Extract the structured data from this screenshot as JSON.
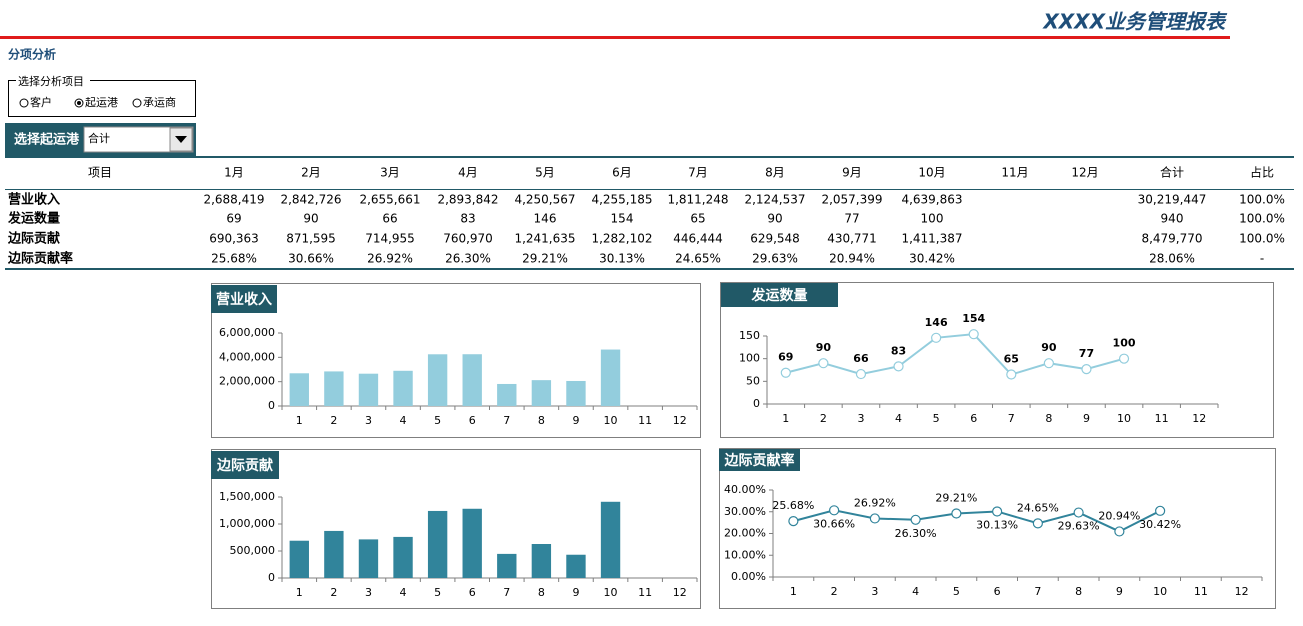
{
  "header": {
    "title": "XXXX业务管理报表",
    "section": "分项分析"
  },
  "selector": {
    "legend": "选择分析项目",
    "options": [
      "客户",
      "起运港",
      "承运商"
    ],
    "selected": 1
  },
  "filter": {
    "label": "选择起运港",
    "value": "合计"
  },
  "table": {
    "columns": [
      "项目",
      "1月",
      "2月",
      "3月",
      "4月",
      "5月",
      "6月",
      "7月",
      "8月",
      "9月",
      "10月",
      "11月",
      "12月",
      "合计",
      "占比"
    ],
    "rows": [
      [
        "营业收入",
        "2,688,419",
        "2,842,726",
        "2,655,661",
        "2,893,842",
        "4,250,567",
        "4,255,185",
        "1,811,248",
        "2,124,537",
        "2,057,399",
        "4,639,863",
        null,
        null,
        "30,219,447",
        "100.0%"
      ],
      [
        "发运数量",
        "69",
        "90",
        "66",
        "83",
        "146",
        "154",
        "65",
        "90",
        "77",
        "100",
        null,
        null,
        "940",
        "100.0%"
      ],
      [
        "边际贡献",
        "690,363",
        "871,595",
        "714,955",
        "760,970",
        "1,241,635",
        "1,282,102",
        "446,444",
        "629,548",
        "430,771",
        "1,411,387",
        null,
        null,
        "8,479,770",
        "100.0%"
      ],
      [
        "边际贡献率",
        "25.68%",
        "30.66%",
        "26.92%",
        "26.30%",
        "29.21%",
        "30.13%",
        "24.65%",
        "29.63%",
        "20.94%",
        "30.42%",
        null,
        null,
        "28.06%",
        "-"
      ]
    ]
  },
  "chart_data": [
    {
      "type": "bar",
      "title": "营业收入",
      "categories": [
        "1",
        "2",
        "3",
        "4",
        "5",
        "6",
        "7",
        "8",
        "9",
        "10",
        "11",
        "12"
      ],
      "values": [
        2688419,
        2842726,
        2655661,
        2893842,
        4250567,
        4255185,
        1811248,
        2124537,
        2057399,
        4639863,
        null,
        null
      ],
      "color": "#93cddd",
      "ylim": [
        0,
        6000000
      ],
      "yticks": [
        0,
        {
          "value": 2000000,
          "label": "2,000,000"
        },
        {
          "value": 4000000,
          "label": "4,000,000"
        },
        {
          "value": 6000000,
          "label": "6,000,000"
        }
      ]
    },
    {
      "type": "line",
      "title": "发运数量",
      "categories": [
        "1",
        "2",
        "3",
        "4",
        "5",
        "6",
        "7",
        "8",
        "9",
        "10",
        "11",
        "12"
      ],
      "values": [
        69,
        90,
        66,
        83,
        146,
        154,
        65,
        90,
        77,
        100,
        null,
        null
      ],
      "color": "#93cddd",
      "ylim": [
        0,
        150
      ],
      "yticks": [
        0,
        50,
        100,
        150
      ],
      "data_labels": true
    },
    {
      "type": "bar",
      "title": "边际贡献",
      "categories": [
        "1",
        "2",
        "3",
        "4",
        "5",
        "6",
        "7",
        "8",
        "9",
        "10",
        "11",
        "12"
      ],
      "values": [
        690363,
        871595,
        714955,
        760970,
        1241635,
        1282102,
        446444,
        629548,
        430771,
        1411387,
        null,
        null
      ],
      "color": "#31849b",
      "ylim": [
        0,
        1500000
      ],
      "yticks": [
        0,
        {
          "value": 500000,
          "label": "500,000"
        },
        {
          "value": 1000000,
          "label": "1,000,000"
        },
        {
          "value": 1500000,
          "label": "1,500,000"
        }
      ]
    },
    {
      "type": "line",
      "title": "边际贡献率",
      "categories": [
        "1",
        "2",
        "3",
        "4",
        "5",
        "6",
        "7",
        "8",
        "9",
        "10",
        "11",
        "12"
      ],
      "values": [
        25.68,
        30.66,
        26.92,
        26.3,
        29.21,
        30.13,
        24.65,
        29.63,
        20.94,
        30.42,
        null,
        null
      ],
      "value_labels": [
        "25.68%",
        "30.66%",
        "26.92%",
        "26.30%",
        "29.21%",
        "30.13%",
        "24.65%",
        "29.63%",
        "20.94%",
        "30.42%",
        null,
        null
      ],
      "color": "#31849b",
      "ylim": [
        0,
        40
      ],
      "yticks": [
        {
          "value": 0,
          "label": "0.00%"
        },
        {
          "value": 10,
          "label": "10.00%"
        },
        {
          "value": 20,
          "label": "20.00%"
        },
        {
          "value": 30,
          "label": "30.00%"
        },
        {
          "value": 40,
          "label": "40.00%"
        }
      ],
      "data_labels": true
    }
  ]
}
